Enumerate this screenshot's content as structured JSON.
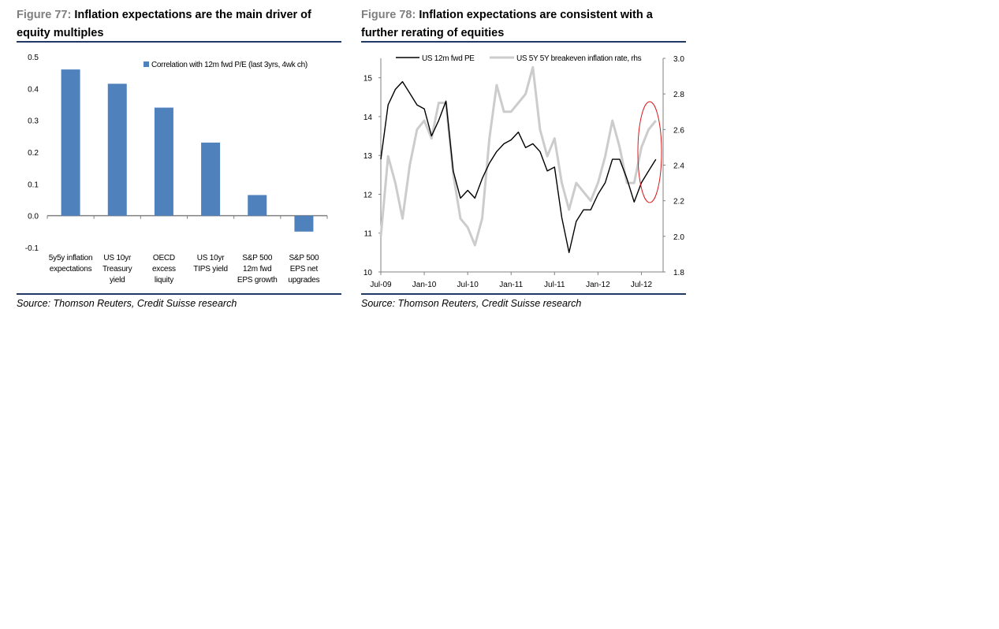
{
  "figures": [
    {
      "number": "Figure 77:",
      "title": "Inflation expectations are the main driver of equity multiples",
      "source": "Source: Thomson Reuters, Credit Suisse research"
    },
    {
      "number": "Figure 78:",
      "title": "Inflation expectations are consistent with a further rerating of equities",
      "source": "Source: Thomson Reuters, Credit Suisse research"
    }
  ],
  "colors": {
    "bar": "#4f81bd",
    "pe_line": "#000000",
    "breakeven_line": "#cccccc",
    "highlight_ellipse": "#d9191c",
    "rule": "#1f3864"
  },
  "chart_data": [
    {
      "type": "bar",
      "categories": [
        [
          "5y5y inflation",
          "expectations"
        ],
        [
          "US 10yr",
          "Treasury",
          "yield"
        ],
        [
          "OECD",
          "excess",
          "liquity"
        ],
        [
          "US 10yr",
          "TIPS yield"
        ],
        [
          "S&P 500",
          "12m fwd",
          "EPS growth"
        ],
        [
          "S&P 500",
          "EPS net",
          "upgrades"
        ]
      ],
      "series": [
        {
          "name": "Correlation with 12m fwd P/E (last 3yrs, 4wk ch)",
          "values": [
            0.46,
            0.415,
            0.34,
            0.23,
            0.065,
            -0.05
          ]
        }
      ],
      "ylim": [
        -0.1,
        0.5
      ],
      "yticks": [
        "0.5",
        "0.4",
        "0.3",
        "0.2",
        "0.1",
        "0.0",
        "-0.1"
      ],
      "legend": "top-right",
      "grid": false
    },
    {
      "type": "line",
      "x_ticks": [
        "Jul-09",
        "Jan-10",
        "Jul-10",
        "Jan-11",
        "Jul-11",
        "Jan-12",
        "Jul-12"
      ],
      "x_range": [
        "2009-07",
        "2012-10"
      ],
      "left_axis": {
        "ticks": [
          "15",
          "14",
          "13",
          "12",
          "11",
          "10"
        ],
        "range": [
          10,
          15.5
        ]
      },
      "right_axis": {
        "ticks": [
          "3.0",
          "2.8",
          "2.6",
          "2.4",
          "2.2",
          "2.0",
          "1.8"
        ],
        "range": [
          1.8,
          3.0
        ]
      },
      "legend": "top",
      "grid": false,
      "series": [
        {
          "name": "US 12m fwd PE",
          "axis": "left",
          "x": [
            "2009-07",
            "2009-08",
            "2009-09",
            "2009-10",
            "2009-11",
            "2009-12",
            "2010-01",
            "2010-02",
            "2010-03",
            "2010-04",
            "2010-05",
            "2010-06",
            "2010-07",
            "2010-08",
            "2010-09",
            "2010-10",
            "2010-11",
            "2010-12",
            "2011-01",
            "2011-02",
            "2011-03",
            "2011-04",
            "2011-05",
            "2011-06",
            "2011-07",
            "2011-08",
            "2011-09",
            "2011-10",
            "2011-11",
            "2011-12",
            "2012-01",
            "2012-02",
            "2012-03",
            "2012-04",
            "2012-05",
            "2012-06",
            "2012-07",
            "2012-08",
            "2012-09"
          ],
          "y": [
            12.9,
            14.3,
            14.7,
            14.9,
            14.6,
            14.3,
            14.2,
            13.5,
            13.9,
            14.4,
            12.6,
            11.9,
            12.1,
            11.9,
            12.4,
            12.8,
            13.1,
            13.3,
            13.4,
            13.6,
            13.2,
            13.3,
            13.1,
            12.6,
            12.7,
            11.4,
            10.5,
            11.3,
            11.6,
            11.6,
            12.0,
            12.3,
            12.9,
            12.9,
            12.4,
            11.8,
            12.3,
            12.6,
            12.9
          ]
        },
        {
          "name": "US 5Y 5Y breakeven inflation rate, rhs",
          "axis": "right",
          "x": [
            "2009-07",
            "2009-08",
            "2009-09",
            "2009-10",
            "2009-11",
            "2009-12",
            "2010-01",
            "2010-02",
            "2010-03",
            "2010-04",
            "2010-05",
            "2010-06",
            "2010-07",
            "2010-08",
            "2010-09",
            "2010-10",
            "2010-11",
            "2010-12",
            "2011-01",
            "2011-02",
            "2011-03",
            "2011-04",
            "2011-05",
            "2011-06",
            "2011-07",
            "2011-08",
            "2011-09",
            "2011-10",
            "2011-11",
            "2011-12",
            "2012-01",
            "2012-02",
            "2012-03",
            "2012-04",
            "2012-05",
            "2012-06",
            "2012-07",
            "2012-08",
            "2012-09"
          ],
          "y": [
            2.0,
            2.45,
            2.3,
            2.1,
            2.4,
            2.6,
            2.65,
            2.55,
            2.75,
            2.75,
            2.35,
            2.1,
            2.05,
            1.95,
            2.1,
            2.55,
            2.85,
            2.7,
            2.7,
            2.75,
            2.8,
            2.95,
            2.6,
            2.45,
            2.55,
            2.3,
            2.15,
            2.3,
            2.25,
            2.2,
            2.3,
            2.45,
            2.65,
            2.5,
            2.3,
            2.3,
            2.5,
            2.6,
            2.65
          ]
        }
      ]
    }
  ]
}
